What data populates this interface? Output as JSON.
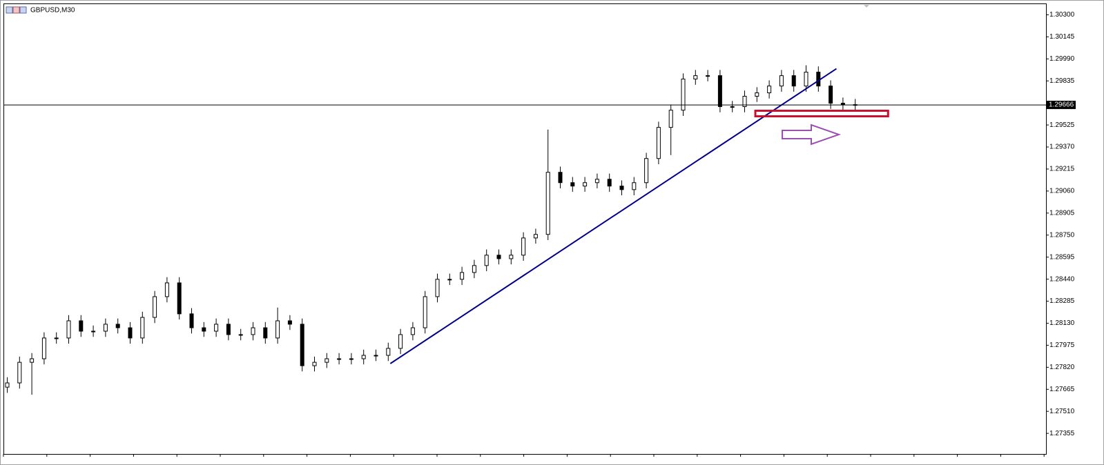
{
  "chart_data": {
    "type": "candlestick",
    "title": "GBPUSD,M30",
    "open": [
      1.2768,
      1.2771,
      1.27855,
      1.2788,
      1.28026,
      1.28026,
      1.28147,
      1.28074,
      1.28074,
      1.28123,
      1.28098,
      1.28026,
      1.28171,
      1.28317,
      1.28414,
      1.28196,
      1.28098,
      1.28074,
      1.28123,
      1.2805,
      1.2805,
      1.28098,
      1.28026,
      1.28147,
      1.28123,
      1.27831,
      1.27855,
      1.2788,
      1.2788,
      1.2788,
      1.27904,
      1.27904,
      1.27953,
      1.2805,
      1.28098,
      1.28317,
      1.28439,
      1.28439,
      1.28487,
      1.28536,
      1.28609,
      1.28584,
      1.28609,
      1.2873,
      1.28755,
      1.29192,
      1.29119,
      1.29095,
      1.29119,
      1.29143,
      1.29095,
      1.2907,
      1.29119,
      1.29289,
      1.29508,
      1.29629,
      1.29848,
      1.29872,
      1.29872,
      1.29654,
      1.29654,
      1.29727,
      1.29751,
      1.29799,
      1.29872,
      1.29799,
      1.29897,
      1.29799,
      1.29678,
      1.29668
    ],
    "high": [
      1.2775,
      1.27895,
      1.2792,
      1.28066,
      1.28066,
      1.28187,
      1.28187,
      1.28114,
      1.28163,
      1.28163,
      1.28138,
      1.28211,
      1.28357,
      1.28454,
      1.28454,
      1.28236,
      1.28138,
      1.28163,
      1.28163,
      1.2809,
      1.28138,
      1.28138,
      1.2824,
      1.28187,
      1.28163,
      1.27895,
      1.2792,
      1.2792,
      1.2792,
      1.27944,
      1.27944,
      1.27993,
      1.2809,
      1.28138,
      1.28357,
      1.28479,
      1.28479,
      1.28527,
      1.28576,
      1.28649,
      1.28649,
      1.28649,
      1.2877,
      1.28795,
      1.29493,
      1.29232,
      1.29159,
      1.29159,
      1.29183,
      1.29183,
      1.29135,
      1.29159,
      1.29329,
      1.29548,
      1.29669,
      1.29888,
      1.29912,
      1.29912,
      1.29912,
      1.29694,
      1.29767,
      1.29791,
      1.29839,
      1.29912,
      1.29912,
      1.29945,
      1.29937,
      1.29839,
      1.29718,
      1.29708
    ],
    "low": [
      1.2764,
      1.2767,
      1.27627,
      1.2784,
      1.27986,
      1.27986,
      1.28034,
      1.28034,
      1.28034,
      1.28058,
      1.27986,
      1.27986,
      1.28131,
      1.28277,
      1.28156,
      1.28058,
      1.28034,
      1.28034,
      1.2801,
      1.2801,
      1.2801,
      1.27986,
      1.27986,
      1.28083,
      1.27791,
      1.27791,
      1.27815,
      1.2784,
      1.2784,
      1.2784,
      1.27864,
      1.27864,
      1.27913,
      1.2801,
      1.28058,
      1.28277,
      1.28399,
      1.28399,
      1.28447,
      1.28496,
      1.28544,
      1.28544,
      1.28569,
      1.2869,
      1.28715,
      1.29079,
      1.29055,
      1.29055,
      1.29079,
      1.29055,
      1.2903,
      1.2903,
      1.29079,
      1.29249,
      1.29313,
      1.29589,
      1.29808,
      1.29832,
      1.29614,
      1.29614,
      1.29614,
      1.29687,
      1.29711,
      1.29759,
      1.29759,
      1.29759,
      1.29759,
      1.29638,
      1.29628,
      1.29626
    ],
    "close": [
      1.2771,
      1.27855,
      1.2788,
      1.28026,
      1.28026,
      1.28147,
      1.28074,
      1.28074,
      1.28123,
      1.28098,
      1.28026,
      1.28171,
      1.28317,
      1.28414,
      1.28196,
      1.28098,
      1.28074,
      1.28123,
      1.2805,
      1.2805,
      1.28098,
      1.28026,
      1.28147,
      1.28123,
      1.27831,
      1.27855,
      1.2788,
      1.2788,
      1.2788,
      1.27904,
      1.27904,
      1.27953,
      1.2805,
      1.28098,
      1.28317,
      1.28439,
      1.28439,
      1.28487,
      1.28536,
      1.28609,
      1.28584,
      1.28609,
      1.2873,
      1.28755,
      1.29192,
      1.29119,
      1.29095,
      1.29119,
      1.29143,
      1.29095,
      1.2907,
      1.29119,
      1.29289,
      1.29508,
      1.29629,
      1.29848,
      1.29872,
      1.29872,
      1.29654,
      1.29654,
      1.29727,
      1.29751,
      1.29799,
      1.29872,
      1.29799,
      1.29897,
      1.29799,
      1.29678,
      1.29668,
      1.29666
    ],
    "up_color": "#ffffff",
    "down_color": "#000000",
    "price_line": 1.29666,
    "trendline": {
      "x": [
        31.2,
        67.5
      ],
      "y": [
        1.27846,
        1.29921
      ],
      "color": "#00008b"
    },
    "zone": {
      "x": [
        60.9,
        71.7
      ],
      "y": [
        1.29586,
        1.29625
      ],
      "color": "#c8102e"
    },
    "ylim": [
      1.2721,
      1.3038
    ],
    "yticks": [
      {
        "value": 1.303,
        "label": "1.30300"
      },
      1.30145,
      {
        "value": 1.2999,
        "label": "1.29990"
      },
      1.29835,
      1.29525,
      {
        "value": 1.2937,
        "label": "1.29370"
      },
      1.29215,
      {
        "value": 1.2906,
        "label": "1.29060"
      },
      1.28905,
      {
        "value": 1.2875,
        "label": "1.28750"
      },
      1.28595,
      {
        "value": 1.2844,
        "label": "1.28440"
      },
      1.28285,
      {
        "value": 1.2813,
        "label": "1.28130"
      },
      1.27975,
      {
        "value": 1.2782,
        "label": "1.27820"
      },
      1.27665,
      {
        "value": 1.2751,
        "label": "1.27510"
      },
      1.27355
    ]
  }
}
